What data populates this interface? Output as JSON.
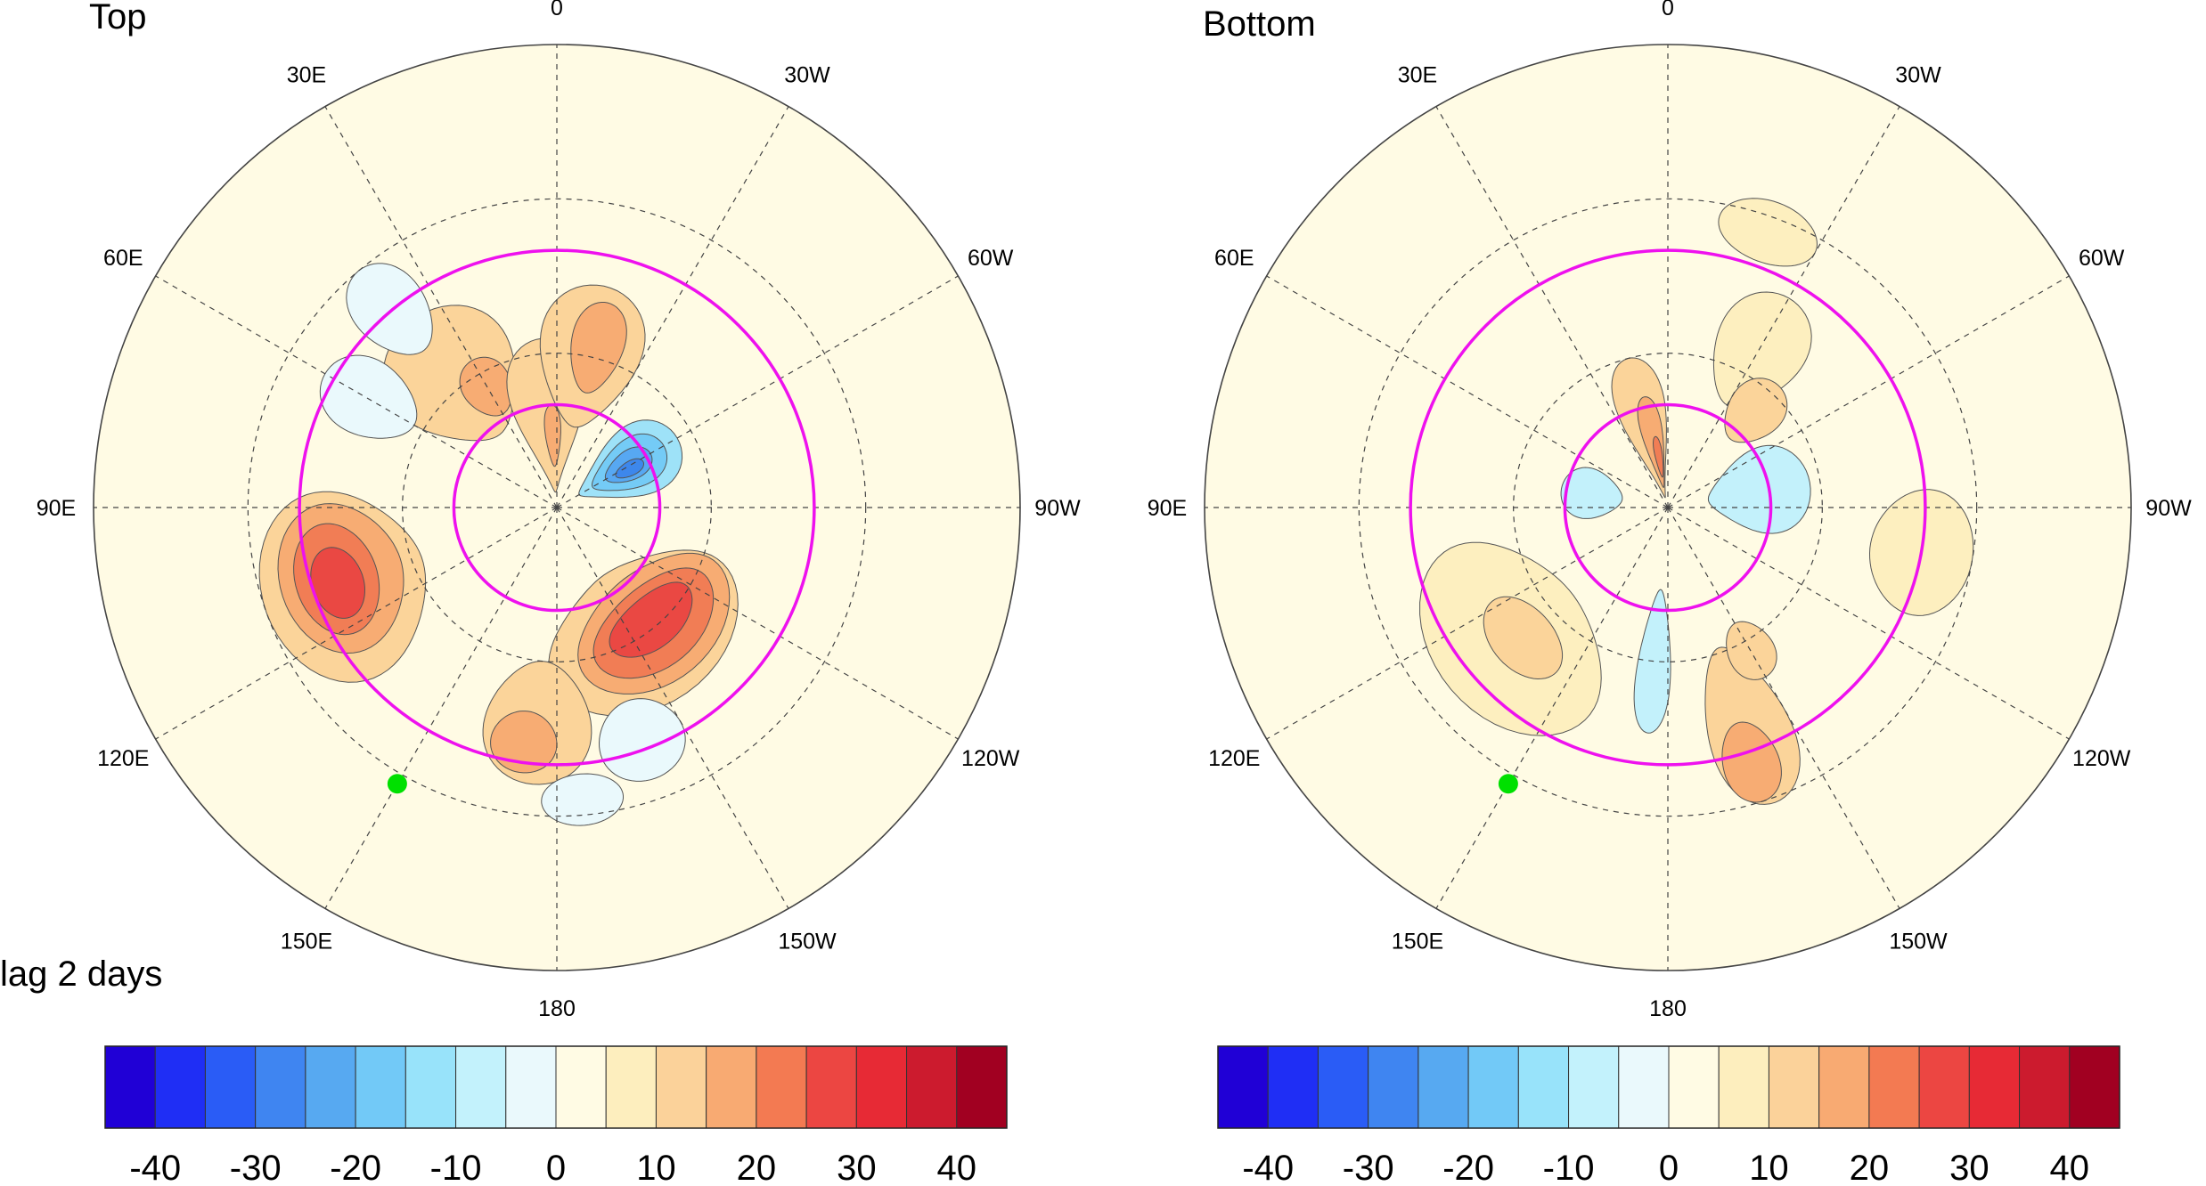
{
  "panels": [
    {
      "title": "Top",
      "fill_colors": [
        "#fffbe4",
        "#fdefbf",
        "#fbd49a",
        "#f7ac73",
        "#f17d55",
        "#ea4843",
        "#e72a35",
        "#eaf9fc",
        "#c3f1fb",
        "#9ee2f8",
        "#74cbf6",
        "#57a8f2",
        "#3d87ec"
      ],
      "blobs": [
        {
          "c": 2,
          "lon": 38,
          "lat": 58,
          "rlon": 22,
          "rlat": 14
        },
        {
          "c": 3,
          "lon": 30,
          "lat": 63,
          "rlon": 10,
          "rlat": 6
        },
        {
          "c": 2,
          "lon": 5,
          "lat": 72,
          "rlon": 20,
          "rlat": 15
        },
        {
          "c": 3,
          "lon": 3,
          "lat": 76,
          "rlon": 6,
          "rlat": 6
        },
        {
          "c": 2,
          "lon": -12,
          "lat": 60,
          "rlon": 18,
          "rlat": 14
        },
        {
          "c": 3,
          "lon": -14,
          "lat": 58,
          "rlon": 9,
          "rlat": 9
        },
        {
          "c": 9,
          "lon": -60,
          "lat": 74,
          "rlon": 22,
          "rlat": 11
        },
        {
          "c": 10,
          "lon": -60,
          "lat": 74,
          "rlon": 16,
          "rlat": 8
        },
        {
          "c": 11,
          "lon": -60,
          "lat": 74,
          "rlon": 10,
          "rlat": 5
        },
        {
          "c": 12,
          "lon": -62,
          "lat": 74,
          "rlon": 5,
          "rlat": 3
        },
        {
          "c": 2,
          "lon": 110,
          "lat": 46,
          "rlon": 24,
          "rlat": 16
        },
        {
          "c": 3,
          "lon": 108,
          "lat": 46,
          "rlon": 19,
          "rlat": 12
        },
        {
          "c": 4,
          "lon": 108,
          "lat": 45,
          "rlon": 14,
          "rlat": 8
        },
        {
          "c": 5,
          "lon": 109,
          "lat": 45,
          "rlon": 9,
          "rlat": 5
        },
        {
          "c": 2,
          "lon": -145,
          "lat": 60,
          "rlon": 38,
          "rlat": 14
        },
        {
          "c": 3,
          "lon": -140,
          "lat": 60,
          "rlon": 32,
          "rlat": 11
        },
        {
          "c": 4,
          "lon": -140,
          "lat": 60,
          "rlon": 26,
          "rlat": 8
        },
        {
          "c": 5,
          "lon": -140,
          "lat": 61,
          "rlon": 19,
          "rlat": 5
        },
        {
          "c": 2,
          "lon": 175,
          "lat": 48,
          "rlon": 14,
          "rlat": 12
        },
        {
          "c": 3,
          "lon": 172,
          "lat": 44,
          "rlon": 8,
          "rlat": 6
        },
        {
          "c": 7,
          "lon": 60,
          "lat": 48,
          "rlon": 10,
          "rlat": 10
        },
        {
          "c": 7,
          "lon": 40,
          "lat": 40,
          "rlon": 8,
          "rlat": 10
        },
        {
          "c": 7,
          "lon": -160,
          "lat": 42,
          "rlon": 10,
          "rlat": 8
        },
        {
          "c": 7,
          "lon": -175,
          "lat": 33,
          "rlon": 8,
          "rlat": 5
        }
      ]
    },
    {
      "title": "Bottom",
      "fill_colors": [
        "#fffbe4",
        "#fdefbf",
        "#fbd49a",
        "#f7ac73",
        "#f17d55",
        "#ea4843",
        "#e72a35",
        "#eaf9fc",
        "#c3f1fb",
        "#9ee2f8",
        "#74cbf6",
        "#57a8f2",
        "#3d87ec"
      ],
      "blobs": [
        {
          "c": 2,
          "lon": 15,
          "lat": 74,
          "rlon": 14,
          "rlat": 14
        },
        {
          "c": 3,
          "lon": 12,
          "lat": 77,
          "rlon": 8,
          "rlat": 9
        },
        {
          "c": 4,
          "lon": 10,
          "lat": 80,
          "rlon": 4,
          "rlat": 4
        },
        {
          "c": 1,
          "lon": -30,
          "lat": 55,
          "rlon": 14,
          "rlat": 12
        },
        {
          "c": 2,
          "lon": -42,
          "lat": 65,
          "rlon": 12,
          "rlat": 7
        },
        {
          "c": 8,
          "lon": -80,
          "lat": 72,
          "rlon": 25,
          "rlat": 10
        },
        {
          "c": 8,
          "lon": 80,
          "lat": 75,
          "rlon": 18,
          "rlat": 6
        },
        {
          "c": 1,
          "lon": 130,
          "lat": 50,
          "rlon": 30,
          "rlat": 15
        },
        {
          "c": 2,
          "lon": 132,
          "lat": 52,
          "rlon": 14,
          "rlat": 6
        },
        {
          "c": 2,
          "lon": -160,
          "lat": 45,
          "rlon": 10,
          "rlat": 16
        },
        {
          "c": 3,
          "lon": -162,
          "lat": 38,
          "rlon": 6,
          "rlat": 8
        },
        {
          "c": 2,
          "lon": -150,
          "lat": 58,
          "rlon": 8,
          "rlat": 6
        },
        {
          "c": 8,
          "lon": 175,
          "lat": 60,
          "rlon": 6,
          "rlat": 14
        },
        {
          "c": 1,
          "lon": -20,
          "lat": 33,
          "rlon": 10,
          "rlat": 6
        },
        {
          "c": 1,
          "lon": -100,
          "lat": 40,
          "rlon": 14,
          "rlat": 10
        }
      ]
    }
  ],
  "lon_labels": [
    {
      "lon": 0,
      "text": "0"
    },
    {
      "lon": 30,
      "text": "30E"
    },
    {
      "lon": 60,
      "text": "60E"
    },
    {
      "lon": 90,
      "text": "90E"
    },
    {
      "lon": 120,
      "text": "120E"
    },
    {
      "lon": 150,
      "text": "150E"
    },
    {
      "lon": 180,
      "text": "180"
    },
    {
      "lon": -150,
      "text": "150W"
    },
    {
      "lon": -120,
      "text": "120W"
    },
    {
      "lon": -90,
      "text": "90W"
    },
    {
      "lon": -60,
      "text": "60W"
    },
    {
      "lon": -30,
      "text": "30W"
    }
  ],
  "magenta_circle_lats": [
    40,
    70
  ],
  "marker": {
    "lon": 150,
    "lat": 28,
    "color": "#00e000"
  },
  "lag_label": "lag 2 days",
  "colorbar": {
    "colors": [
      "#2000d6",
      "#1f2ef5",
      "#2a5cf6",
      "#3f85f1",
      "#57a9f1",
      "#72c9f7",
      "#98e3fa",
      "#c3f2fc",
      "#eaf9fc",
      "#fffbe4",
      "#fdeebe",
      "#fbd29a",
      "#f8aa72",
      "#f37a52",
      "#ec4642",
      "#e72a35",
      "#cc1b2e",
      "#a10021"
    ],
    "ticks": [
      "-40",
      "-30",
      "-20",
      "-10",
      "0",
      "10",
      "20",
      "30",
      "40"
    ]
  }
}
